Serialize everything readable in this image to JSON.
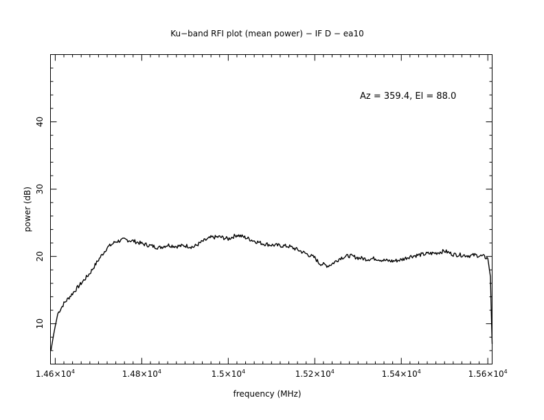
{
  "chart_data": {
    "type": "line",
    "title": "Ku−band RFI plot (mean power) − IF D − ea10",
    "xlabel": "frequency (MHz)",
    "ylabel": "power (dB)",
    "annotation": "Az = 359.4, El = 88.0",
    "xlim": [
      14589,
      15610
    ],
    "ylim": [
      4,
      50
    ],
    "x_ticks": [
      {
        "value": 14600,
        "mantissa": "1.46",
        "exponent": "4"
      },
      {
        "value": 14800,
        "mantissa": "1.48",
        "exponent": "4"
      },
      {
        "value": 15000,
        "mantissa": "1.5",
        "exponent": "4"
      },
      {
        "value": 15200,
        "mantissa": "1.52",
        "exponent": "4"
      },
      {
        "value": 15400,
        "mantissa": "1.54",
        "exponent": "4"
      },
      {
        "value": 15600,
        "mantissa": "1.56",
        "exponent": "4"
      }
    ],
    "y_ticks": [
      10,
      20,
      30,
      40
    ],
    "line_color": "#000000",
    "series": [
      {
        "x": [
          14590,
          14598,
          14606,
          14620,
          14640,
          14660,
          14680,
          14700,
          14720,
          14740,
          14760,
          14780,
          14800,
          14820,
          14840,
          14860,
          14880,
          14900,
          14920,
          14940,
          14960,
          14980,
          15000,
          15020,
          15040,
          15060,
          15080,
          15100,
          15120,
          15140,
          15160,
          15180,
          15200,
          15210,
          15220,
          15230,
          15240,
          15260,
          15280,
          15300,
          15320,
          15340,
          15360,
          15380,
          15400,
          15420,
          15440,
          15460,
          15480,
          15500,
          15520,
          15540,
          15560,
          15570,
          15580,
          15590,
          15600,
          15606,
          15610
        ],
        "y": [
          6.0,
          9.0,
          11.5,
          13.0,
          14.5,
          16.0,
          17.5,
          19.5,
          21.3,
          22.2,
          22.5,
          22.3,
          21.9,
          21.6,
          21.3,
          21.7,
          21.5,
          21.6,
          21.4,
          22.2,
          22.8,
          22.9,
          22.6,
          23.2,
          22.8,
          22.3,
          21.9,
          21.7,
          21.6,
          21.5,
          21.0,
          20.4,
          19.8,
          19.0,
          18.8,
          18.6,
          18.9,
          19.8,
          20.1,
          19.8,
          19.6,
          19.7,
          19.4,
          19.3,
          19.5,
          20.0,
          20.2,
          20.4,
          20.5,
          20.8,
          20.3,
          20.2,
          20.1,
          20.2,
          20.1,
          20.0,
          19.7,
          17.0,
          7.0
        ]
      }
    ]
  }
}
